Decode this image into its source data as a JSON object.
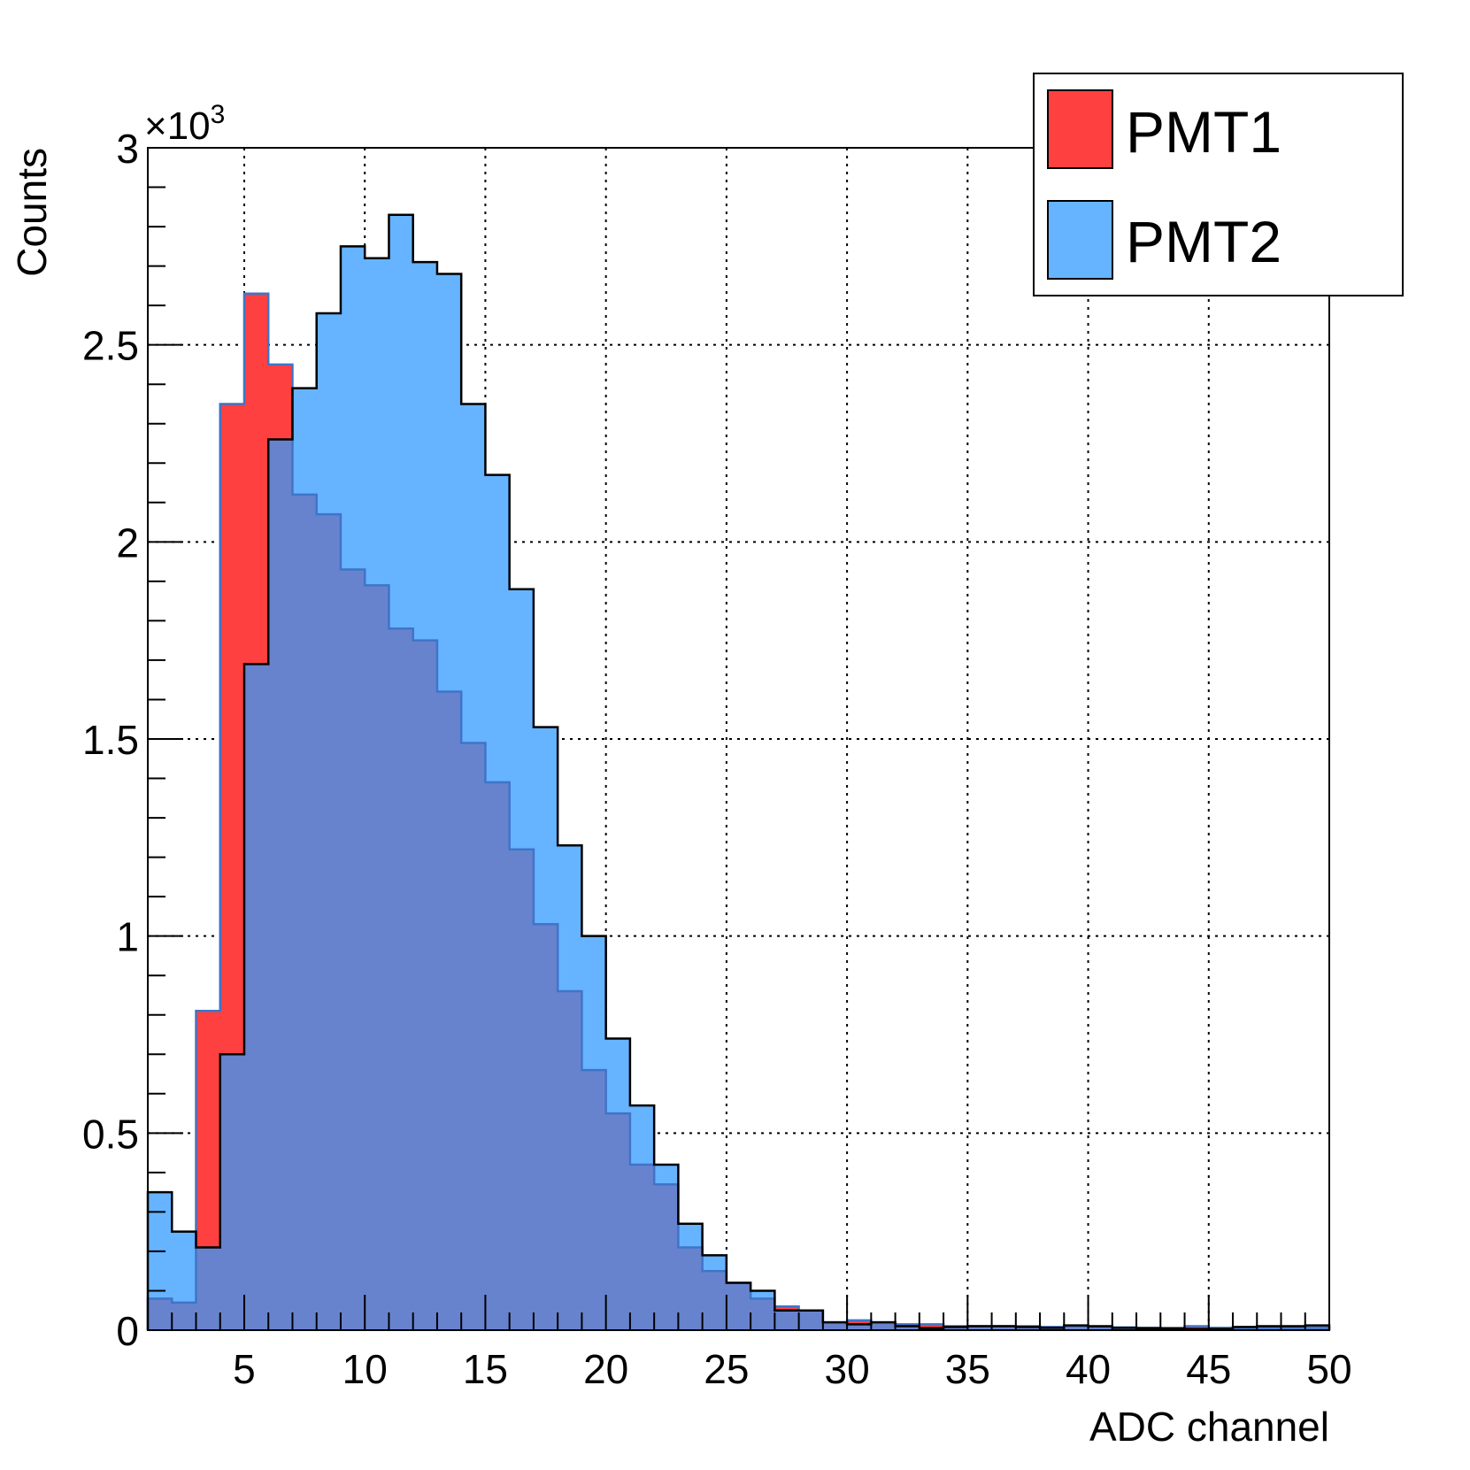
{
  "chart_data": {
    "type": "bar",
    "xlabel": "ADC channel",
    "ylabel": "Counts",
    "y_multiplier_label": "×10",
    "y_multiplier_exp": "3",
    "xlim": [
      1,
      50
    ],
    "ylim": [
      0,
      3
    ],
    "grid": true,
    "legend_position": "top-right",
    "x_ticks": [
      "5",
      "10",
      "15",
      "20",
      "25",
      "30",
      "35",
      "40",
      "45",
      "50"
    ],
    "y_ticks": [
      "0",
      "0.5",
      "1",
      "1.5",
      "2",
      "2.5",
      "3"
    ],
    "bin_edges": [
      1,
      2,
      3,
      4,
      5,
      6,
      7,
      8,
      9,
      10,
      11,
      12,
      13,
      14,
      15,
      16,
      17,
      18,
      19,
      20,
      21,
      22,
      23,
      24,
      25,
      26,
      27,
      28,
      29,
      30,
      31,
      32,
      33,
      34,
      35,
      36,
      37,
      38,
      39,
      40,
      41,
      42,
      43,
      44,
      45,
      46,
      47,
      48,
      49,
      50
    ],
    "series": [
      {
        "name": "PMT1",
        "color": "#ff4040",
        "values": [
          0.08,
          0.07,
          0.81,
          2.35,
          2.63,
          2.45,
          2.12,
          2.07,
          1.93,
          1.89,
          1.78,
          1.75,
          1.62,
          1.49,
          1.39,
          1.22,
          1.03,
          0.86,
          0.66,
          0.55,
          0.42,
          0.37,
          0.21,
          0.15,
          0.12,
          0.08,
          0.06,
          0.05,
          0.02,
          0.025,
          0.02,
          0.015,
          0.015,
          0.01,
          0.01,
          0.01,
          0.01,
          0.008,
          0.01,
          0.008,
          0.007,
          0.006,
          0.005,
          0.01,
          0.006,
          0.006,
          0.006,
          0.006,
          0.006
        ]
      },
      {
        "name": "PMT2",
        "color": "#66b3ff",
        "values": [
          0.35,
          0.25,
          0.21,
          0.7,
          1.69,
          2.26,
          2.39,
          2.58,
          2.75,
          2.72,
          2.83,
          2.71,
          2.68,
          2.35,
          2.17,
          1.88,
          1.53,
          1.23,
          1.0,
          0.74,
          0.57,
          0.42,
          0.27,
          0.19,
          0.12,
          0.1,
          0.05,
          0.05,
          0.02,
          0.015,
          0.02,
          0.01,
          0.005,
          0.008,
          0.01,
          0.01,
          0.008,
          0.006,
          0.012,
          0.01,
          0.006,
          0.005,
          0.005,
          0.003,
          0.003,
          0.008,
          0.01,
          0.01,
          0.012
        ]
      }
    ]
  }
}
